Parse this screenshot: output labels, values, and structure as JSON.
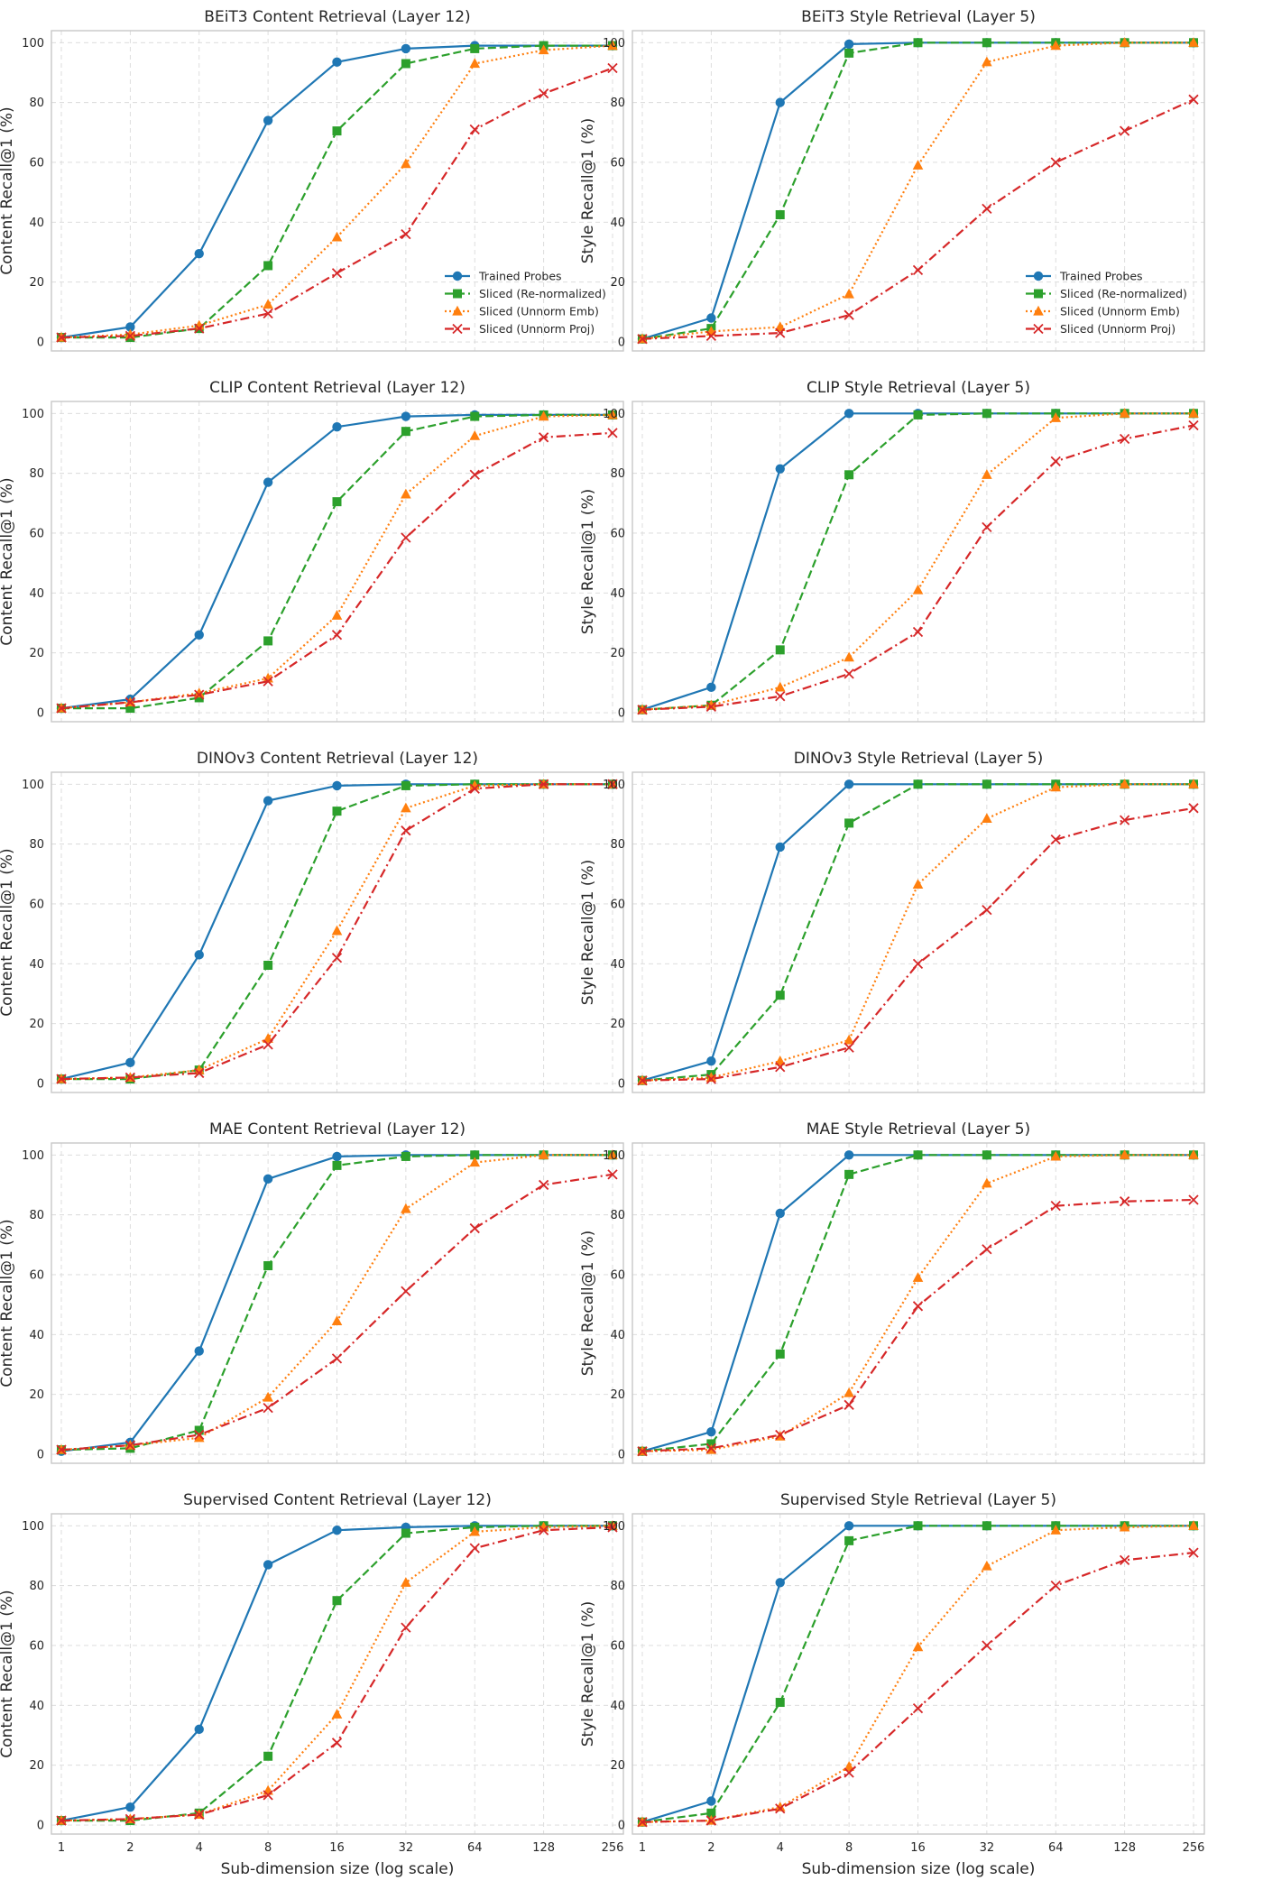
{
  "figure": {
    "x_ticks": [
      1,
      2,
      4,
      8,
      16,
      32,
      64,
      128,
      256
    ],
    "y_ticks": [
      0,
      20,
      40,
      60,
      80,
      100
    ],
    "series_styles": [
      {
        "name": "Trained Probes",
        "color": "#1f77b4",
        "marker": "circle",
        "dash": "solid"
      },
      {
        "name": "Sliced (Re-normalized)",
        "color": "#2ca02c",
        "marker": "square",
        "dash": "dashed"
      },
      {
        "name": "Sliced (Unnorm Emb)",
        "color": "#ff7f0e",
        "marker": "triangle",
        "dash": "dotted"
      },
      {
        "name": "Sliced (Unnorm Proj)",
        "color": "#d62728",
        "marker": "x",
        "dash": "dashdot"
      }
    ]
  },
  "chart_data": [
    {
      "type": "line",
      "title": "BEiT3 Content Retrieval (Layer 12)",
      "xlabel": "",
      "ylabel": "Content Recall@1 (%)",
      "x": [
        1,
        2,
        4,
        8,
        16,
        32,
        64,
        128,
        256
      ],
      "xscale": "log2",
      "ylim": [
        -3,
        104
      ],
      "grid": true,
      "legend": "lower-right",
      "series": [
        {
          "name": "Trained Probes",
          "values": [
            1.5,
            5,
            29.5,
            74,
            93.5,
            98,
            99,
            99,
            99
          ]
        },
        {
          "name": "Sliced (Re-normalized)",
          "values": [
            1.5,
            1.5,
            4.5,
            25.5,
            70.5,
            93,
            98,
            99,
            99
          ]
        },
        {
          "name": "Sliced (Unnorm Emb)",
          "values": [
            1.5,
            2.5,
            5.5,
            12.5,
            35,
            59.5,
            93,
            97.5,
            99
          ]
        },
        {
          "name": "Sliced (Unnorm Proj)",
          "values": [
            1.5,
            2,
            4.5,
            9.5,
            23,
            36,
            71,
            83,
            91.5
          ]
        }
      ]
    },
    {
      "type": "line",
      "title": "BEiT3 Style Retrieval (Layer 5)",
      "xlabel": "",
      "ylabel": "Style Recall@1 (%)",
      "x": [
        1,
        2,
        4,
        8,
        16,
        32,
        64,
        128,
        256
      ],
      "xscale": "log2",
      "ylim": [
        -3,
        104
      ],
      "grid": true,
      "legend": "lower-right",
      "series": [
        {
          "name": "Trained Probes",
          "values": [
            1,
            8,
            80,
            99.5,
            100,
            100,
            100,
            100,
            100
          ]
        },
        {
          "name": "Sliced (Re-normalized)",
          "values": [
            1,
            4.5,
            42.5,
            96.5,
            100,
            100,
            100,
            100,
            100
          ]
        },
        {
          "name": "Sliced (Unnorm Emb)",
          "values": [
            1,
            3.5,
            5,
            16,
            59,
            93.5,
            99,
            100,
            100
          ]
        },
        {
          "name": "Sliced (Unnorm Proj)",
          "values": [
            1,
            2,
            3,
            9,
            24,
            44.5,
            60,
            70.5,
            81
          ]
        }
      ]
    },
    {
      "type": "line",
      "title": "CLIP Content Retrieval (Layer 12)",
      "xlabel": "",
      "ylabel": "Content Recall@1 (%)",
      "x": [
        1,
        2,
        4,
        8,
        16,
        32,
        64,
        128,
        256
      ],
      "xscale": "log2",
      "ylim": [
        -3,
        104
      ],
      "grid": true,
      "legend": "none",
      "series": [
        {
          "name": "Trained Probes",
          "values": [
            1.5,
            4.5,
            26,
            77,
            95.5,
            99,
            99.5,
            99.5,
            99.5
          ]
        },
        {
          "name": "Sliced (Re-normalized)",
          "values": [
            1.5,
            1.5,
            5,
            24,
            70.5,
            94,
            99,
            99.5,
            99.5
          ]
        },
        {
          "name": "Sliced (Unnorm Emb)",
          "values": [
            1.5,
            3.5,
            6.5,
            11.5,
            32.5,
            73,
            92.5,
            99,
            99.5
          ]
        },
        {
          "name": "Sliced (Unnorm Proj)",
          "values": [
            1.5,
            3.5,
            6,
            10.5,
            26,
            58.5,
            79.5,
            92,
            93.5
          ]
        }
      ]
    },
    {
      "type": "line",
      "title": "CLIP Style Retrieval (Layer 5)",
      "xlabel": "",
      "ylabel": "Style Recall@1 (%)",
      "x": [
        1,
        2,
        4,
        8,
        16,
        32,
        64,
        128,
        256
      ],
      "xscale": "log2",
      "ylim": [
        -3,
        104
      ],
      "grid": true,
      "legend": "none",
      "series": [
        {
          "name": "Trained Probes",
          "values": [
            1,
            8.5,
            81.5,
            100,
            100,
            100,
            100,
            100,
            100
          ]
        },
        {
          "name": "Sliced (Re-normalized)",
          "values": [
            1,
            2.5,
            21,
            79.5,
            99.5,
            100,
            100,
            100,
            100
          ]
        },
        {
          "name": "Sliced (Unnorm Emb)",
          "values": [
            1,
            2.5,
            8.5,
            18.5,
            41,
            79.5,
            98.5,
            100,
            100
          ]
        },
        {
          "name": "Sliced (Unnorm Proj)",
          "values": [
            1,
            2,
            5.5,
            13,
            27,
            62,
            84,
            91.5,
            96
          ]
        }
      ]
    },
    {
      "type": "line",
      "title": "DINOv3 Content Retrieval (Layer 12)",
      "xlabel": "",
      "ylabel": "Content Recall@1 (%)",
      "x": [
        1,
        2,
        4,
        8,
        16,
        32,
        64,
        128,
        256
      ],
      "xscale": "log2",
      "ylim": [
        -3,
        104
      ],
      "grid": true,
      "legend": "none",
      "series": [
        {
          "name": "Trained Probes",
          "values": [
            1.5,
            7,
            43,
            94.5,
            99.5,
            100,
            100,
            100,
            100
          ]
        },
        {
          "name": "Sliced (Re-normalized)",
          "values": [
            1.5,
            1.5,
            4.5,
            39.5,
            91,
            99.5,
            100,
            100,
            100
          ]
        },
        {
          "name": "Sliced (Unnorm Emb)",
          "values": [
            1.5,
            2,
            4.5,
            15,
            51,
            92,
            99.5,
            100,
            100
          ]
        },
        {
          "name": "Sliced (Unnorm Proj)",
          "values": [
            1.5,
            2,
            3.5,
            13,
            42,
            84.5,
            98.5,
            100,
            100
          ]
        }
      ]
    },
    {
      "type": "line",
      "title": "DINOv3 Style Retrieval (Layer 5)",
      "xlabel": "",
      "ylabel": "Style Recall@1 (%)",
      "x": [
        1,
        2,
        4,
        8,
        16,
        32,
        64,
        128,
        256
      ],
      "xscale": "log2",
      "ylim": [
        -3,
        104
      ],
      "grid": true,
      "legend": "none",
      "series": [
        {
          "name": "Trained Probes",
          "values": [
            1,
            7.5,
            79,
            100,
            100,
            100,
            100,
            100,
            100
          ]
        },
        {
          "name": "Sliced (Re-normalized)",
          "values": [
            1,
            3,
            29.5,
            87,
            100,
            100,
            100,
            100,
            100
          ]
        },
        {
          "name": "Sliced (Unnorm Emb)",
          "values": [
            1,
            2,
            7.5,
            14.5,
            66.5,
            88.5,
            99,
            100,
            100
          ]
        },
        {
          "name": "Sliced (Unnorm Proj)",
          "values": [
            1,
            1.5,
            5.5,
            12,
            40,
            58,
            81.5,
            88,
            92
          ]
        }
      ]
    },
    {
      "type": "line",
      "title": "MAE Content Retrieval (Layer 12)",
      "xlabel": "",
      "ylabel": "Content Recall@1 (%)",
      "x": [
        1,
        2,
        4,
        8,
        16,
        32,
        64,
        128,
        256
      ],
      "xscale": "log2",
      "ylim": [
        -3,
        104
      ],
      "grid": true,
      "legend": "none",
      "series": [
        {
          "name": "Trained Probes",
          "values": [
            1,
            4,
            34.5,
            92,
            99.5,
            100,
            100,
            100,
            100
          ]
        },
        {
          "name": "Sliced (Re-normalized)",
          "values": [
            1.5,
            2,
            8,
            63,
            96.5,
            99.5,
            100,
            100,
            100
          ]
        },
        {
          "name": "Sliced (Unnorm Emb)",
          "values": [
            1.5,
            3,
            5.5,
            19,
            44.5,
            82,
            97.5,
            100,
            100
          ]
        },
        {
          "name": "Sliced (Unnorm Proj)",
          "values": [
            1.5,
            3,
            6.5,
            15.5,
            32,
            54.5,
            75.5,
            90,
            93.5
          ]
        }
      ]
    },
    {
      "type": "line",
      "title": "MAE Style Retrieval (Layer 5)",
      "xlabel": "",
      "ylabel": "Style Recall@1 (%)",
      "x": [
        1,
        2,
        4,
        8,
        16,
        32,
        64,
        128,
        256
      ],
      "xscale": "log2",
      "ylim": [
        -3,
        104
      ],
      "grid": true,
      "legend": "none",
      "series": [
        {
          "name": "Trained Probes",
          "values": [
            1,
            7.5,
            80.5,
            100,
            100,
            100,
            100,
            100,
            100
          ]
        },
        {
          "name": "Sliced (Re-normalized)",
          "values": [
            1,
            3.5,
            33.5,
            93.5,
            100,
            100,
            100,
            100,
            100
          ]
        },
        {
          "name": "Sliced (Unnorm Emb)",
          "values": [
            1,
            1.5,
            6,
            20.5,
            59,
            90.5,
            99.5,
            100,
            100
          ]
        },
        {
          "name": "Sliced (Unnorm Proj)",
          "values": [
            1,
            2,
            6.5,
            16.5,
            49.5,
            68.5,
            83,
            84.5,
            85
          ]
        }
      ]
    },
    {
      "type": "line",
      "title": "Supervised Content Retrieval (Layer 12)",
      "xlabel": "Sub-dimension size (log scale)",
      "ylabel": "Content Recall@1 (%)",
      "x": [
        1,
        2,
        4,
        8,
        16,
        32,
        64,
        128,
        256
      ],
      "xscale": "log2",
      "ylim": [
        -3,
        104
      ],
      "grid": true,
      "legend": "none",
      "series": [
        {
          "name": "Trained Probes",
          "values": [
            1.5,
            6,
            32,
            87,
            98.5,
            99.5,
            100,
            100,
            100
          ]
        },
        {
          "name": "Sliced (Re-normalized)",
          "values": [
            1.5,
            1.5,
            4,
            23,
            75,
            97.5,
            99.5,
            100,
            100
          ]
        },
        {
          "name": "Sliced (Unnorm Emb)",
          "values": [
            1.5,
            2,
            3.5,
            11.5,
            37,
            81,
            98,
            99.5,
            100
          ]
        },
        {
          "name": "Sliced (Unnorm Proj)",
          "values": [
            1.5,
            2,
            3.5,
            10,
            27.5,
            66,
            92.5,
            98.5,
            99.5
          ]
        }
      ]
    },
    {
      "type": "line",
      "title": "Supervised Style Retrieval (Layer 5)",
      "xlabel": "Sub-dimension size (log scale)",
      "ylabel": "Style Recall@1 (%)",
      "x": [
        1,
        2,
        4,
        8,
        16,
        32,
        64,
        128,
        256
      ],
      "xscale": "log2",
      "ylim": [
        -3,
        104
      ],
      "grid": true,
      "legend": "none",
      "series": [
        {
          "name": "Trained Probes",
          "values": [
            1,
            8,
            81,
            100,
            100,
            100,
            100,
            100,
            100
          ]
        },
        {
          "name": "Sliced (Re-normalized)",
          "values": [
            1,
            4,
            41,
            95,
            100,
            100,
            100,
            100,
            100
          ]
        },
        {
          "name": "Sliced (Unnorm Emb)",
          "values": [
            1,
            1.5,
            6,
            19.5,
            59.5,
            86.5,
            98.5,
            99.5,
            100
          ]
        },
        {
          "name": "Sliced (Unnorm Proj)",
          "values": [
            1,
            1.5,
            5.5,
            17.5,
            39,
            60,
            80,
            88.5,
            91
          ]
        }
      ]
    }
  ]
}
